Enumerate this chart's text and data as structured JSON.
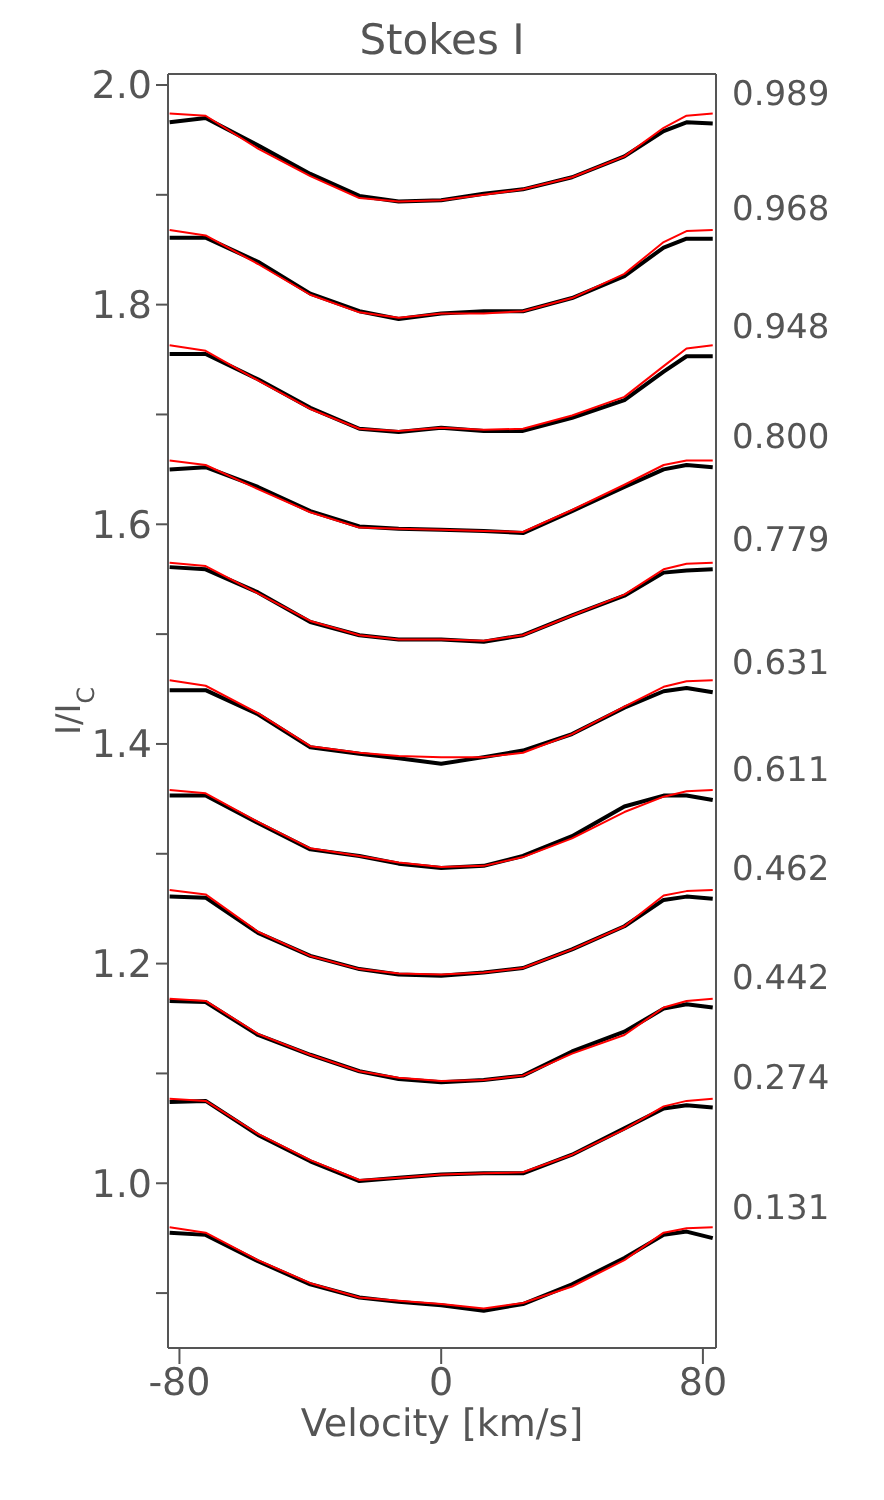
{
  "chart_data": {
    "type": "line",
    "title": "Stokes I",
    "xlabel": "Velocity [km/s]",
    "ylabel": "I/I$_{C}$",
    "x": [
      -83,
      -72,
      -56,
      -40,
      -25,
      -13,
      0,
      13,
      25,
      40,
      56,
      68,
      75,
      83
    ],
    "xlim": [
      -83.5,
      84
    ],
    "xticks": [
      -80,
      0,
      80
    ],
    "ylim": [
      0.85,
      2.01
    ],
    "yticks": [
      {
        "value": 0.9,
        "label": null
      },
      {
        "value": 1.0,
        "label": "1.0"
      },
      {
        "value": 1.1,
        "label": null
      },
      {
        "value": 1.2,
        "label": "1.2"
      },
      {
        "value": 1.3,
        "label": null
      },
      {
        "value": 1.4,
        "label": "1.4"
      },
      {
        "value": 1.5,
        "label": null
      },
      {
        "value": 1.6,
        "label": "1.6"
      },
      {
        "value": 1.7,
        "label": null
      },
      {
        "value": 1.8,
        "label": "1.8"
      },
      {
        "value": 1.9,
        "label": null
      },
      {
        "value": 2.0,
        "label": "2.0"
      }
    ],
    "line_style": "solid",
    "series": [
      {
        "color": "#ff0000",
        "values": [
          1.974,
          1.972,
          1.942,
          1.917,
          1.897,
          1.894,
          1.895,
          1.9,
          1.905,
          1.916,
          1.935,
          1.961,
          1.972,
          1.974
        ]
      },
      {
        "name": "0.989",
        "color": "#000000",
        "values": [
          1.966,
          1.97,
          1.945,
          1.919,
          1.899,
          1.894,
          1.895,
          1.901,
          1.905,
          1.916,
          1.935,
          1.958,
          1.966,
          1.965
        ]
      },
      {
        "color": "#ff0000",
        "values": [
          1.868,
          1.863,
          1.837,
          1.809,
          1.793,
          1.788,
          1.792,
          1.792,
          1.794,
          1.806,
          1.828,
          1.857,
          1.867,
          1.868
        ]
      },
      {
        "name": "0.968",
        "color": "#000000",
        "values": [
          1.861,
          1.861,
          1.839,
          1.81,
          1.794,
          1.787,
          1.792,
          1.794,
          1.794,
          1.806,
          1.826,
          1.852,
          1.86,
          1.86
        ]
      },
      {
        "color": "#ff0000",
        "values": [
          1.763,
          1.758,
          1.731,
          1.705,
          1.687,
          1.685,
          1.688,
          1.686,
          1.687,
          1.699,
          1.716,
          1.744,
          1.76,
          1.763
        ]
      },
      {
        "name": "0.948",
        "color": "#000000",
        "values": [
          1.755,
          1.755,
          1.732,
          1.706,
          1.687,
          1.684,
          1.688,
          1.685,
          1.685,
          1.697,
          1.713,
          1.739,
          1.753,
          1.753
        ]
      },
      {
        "color": "#ff0000",
        "values": [
          1.658,
          1.654,
          1.632,
          1.611,
          1.597,
          1.596,
          1.595,
          1.594,
          1.593,
          1.613,
          1.636,
          1.654,
          1.658,
          1.658
        ]
      },
      {
        "name": "0.800",
        "color": "#000000",
        "values": [
          1.65,
          1.652,
          1.634,
          1.612,
          1.598,
          1.596,
          1.595,
          1.594,
          1.592,
          1.612,
          1.634,
          1.65,
          1.654,
          1.652
        ]
      },
      {
        "color": "#ff0000",
        "values": [
          1.565,
          1.562,
          1.537,
          1.512,
          1.499,
          1.495,
          1.495,
          1.494,
          1.499,
          1.517,
          1.536,
          1.559,
          1.564,
          1.565
        ]
      },
      {
        "name": "0.779",
        "color": "#000000",
        "values": [
          1.561,
          1.559,
          1.538,
          1.511,
          1.499,
          1.495,
          1.495,
          1.493,
          1.499,
          1.517,
          1.535,
          1.556,
          1.558,
          1.559
        ]
      },
      {
        "color": "#ff0000",
        "values": [
          1.458,
          1.453,
          1.428,
          1.398,
          1.392,
          1.389,
          1.388,
          1.388,
          1.392,
          1.409,
          1.434,
          1.452,
          1.457,
          1.458
        ]
      },
      {
        "name": "0.631",
        "color": "#000000",
        "values": [
          1.449,
          1.449,
          1.427,
          1.397,
          1.391,
          1.387,
          1.382,
          1.388,
          1.394,
          1.409,
          1.433,
          1.448,
          1.451,
          1.447
        ]
      },
      {
        "color": "#ff0000",
        "values": [
          1.358,
          1.355,
          1.329,
          1.305,
          1.298,
          1.292,
          1.288,
          1.289,
          1.297,
          1.314,
          1.338,
          1.352,
          1.357,
          1.358
        ]
      },
      {
        "name": "0.611",
        "color": "#000000",
        "values": [
          1.353,
          1.353,
          1.328,
          1.304,
          1.298,
          1.291,
          1.287,
          1.289,
          1.298,
          1.316,
          1.343,
          1.353,
          1.353,
          1.349
        ]
      },
      {
        "color": "#ff0000",
        "values": [
          1.267,
          1.263,
          1.229,
          1.207,
          1.195,
          1.191,
          1.19,
          1.192,
          1.196,
          1.213,
          1.234,
          1.262,
          1.266,
          1.267
        ]
      },
      {
        "name": "0.462",
        "color": "#000000",
        "values": [
          1.261,
          1.26,
          1.228,
          1.207,
          1.195,
          1.19,
          1.189,
          1.192,
          1.196,
          1.213,
          1.234,
          1.258,
          1.261,
          1.259
        ]
      },
      {
        "color": "#ff0000",
        "values": [
          1.168,
          1.166,
          1.136,
          1.117,
          1.102,
          1.096,
          1.093,
          1.094,
          1.098,
          1.118,
          1.135,
          1.16,
          1.166,
          1.168
        ]
      },
      {
        "name": "0.442",
        "color": "#000000",
        "values": [
          1.166,
          1.165,
          1.135,
          1.117,
          1.102,
          1.095,
          1.092,
          1.094,
          1.098,
          1.12,
          1.138,
          1.159,
          1.163,
          1.16
        ]
      },
      {
        "color": "#ff0000",
        "values": [
          1.077,
          1.075,
          1.045,
          1.021,
          1.003,
          1.005,
          1.008,
          1.009,
          1.01,
          1.026,
          1.049,
          1.07,
          1.075,
          1.077
        ]
      },
      {
        "name": "0.274",
        "color": "#000000",
        "values": [
          1.074,
          1.075,
          1.044,
          1.02,
          1.002,
          1.005,
          1.008,
          1.009,
          1.009,
          1.026,
          1.05,
          1.068,
          1.071,
          1.069
        ]
      },
      {
        "color": "#ff0000",
        "values": [
          0.96,
          0.955,
          0.93,
          0.909,
          0.896,
          0.893,
          0.89,
          0.886,
          0.891,
          0.906,
          0.93,
          0.955,
          0.959,
          0.96
        ]
      },
      {
        "name": "0.131",
        "color": "#000000",
        "values": [
          0.955,
          0.953,
          0.929,
          0.908,
          0.896,
          0.892,
          0.889,
          0.884,
          0.89,
          0.908,
          0.932,
          0.953,
          0.956,
          0.95
        ]
      }
    ]
  }
}
